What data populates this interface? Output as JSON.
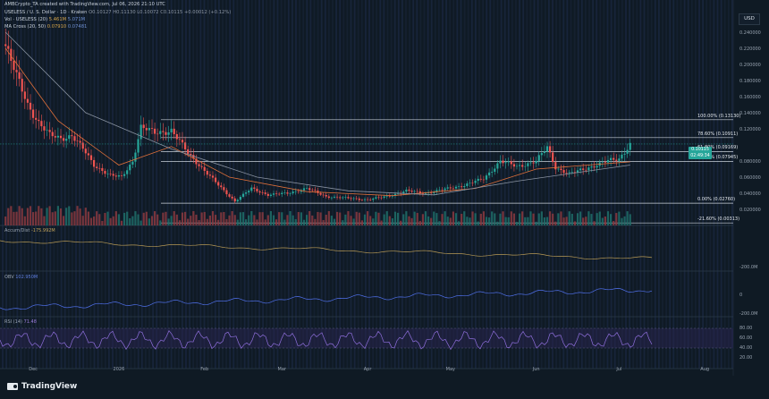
{
  "header": {
    "attribution": "AMBCrypto_TA created with TradingView.com, Jul 06, 2026 21:10 UTC",
    "symbol_line": "USELESS / U. S. Dollar · 1D · Kraken",
    "ohlc": "O0.10127  H0.11130  L0.10072  C0.10115  +0.00012 (+0.12%)",
    "vol_label": "Vol · USELESS (20)",
    "vol_value": "5.461M",
    "vol_value2": "5.071M",
    "ma_label": "MA Cross (20, 50)",
    "ma_value": "0.07910",
    "ma_value2": "0.07481"
  },
  "currency_button": "USD",
  "price_axis": [
    "0.240000",
    "0.220000",
    "0.200000",
    "0.180000",
    "0.160000",
    "0.140000",
    "0.120000",
    "0.080000",
    "0.060000",
    "0.040000",
    "0.020000"
  ],
  "fib_levels": [
    {
      "label": "100.00% (0.13130)",
      "price": 0.1313
    },
    {
      "label": "78.60% (0.10911)",
      "price": 0.10911
    },
    {
      "label": "61.80% (0.09169)",
      "price": 0.09169
    },
    {
      "label": "50.00% (0.07945)",
      "price": 0.07945
    },
    {
      "label": "0.00% (0.02760)",
      "price": 0.0276
    },
    {
      "label": "-21.60% (0.00313)",
      "price": 0.00313
    }
  ],
  "last_price_tag": {
    "price": "0.10115",
    "countdown": "02:49:34"
  },
  "time_axis": [
    "Dec",
    "2026",
    "Feb",
    "Mar",
    "Apr",
    "May",
    "Jun",
    "Jul",
    "Aug"
  ],
  "indicators": {
    "accum_dist": {
      "label": "Accum/Dist",
      "value": "-175.992M",
      "axis": [
        "-200.0M"
      ]
    },
    "obv": {
      "label": "OBV",
      "value": "102.950M",
      "axis": [
        "0",
        "-200.0M"
      ]
    },
    "rsi": {
      "label": "RSI (14)",
      "value": "71.48",
      "axis": [
        "80.00",
        "60.00",
        "40.00",
        "20.00"
      ]
    }
  },
  "brand": "TradingView",
  "chart_data": {
    "type": "candlestick",
    "title": "USELESS / U. S. Dollar · 1D · Kraken",
    "ylim": [
      0,
      0.25
    ],
    "x_range": [
      "2025-11-19",
      "2026-08-10"
    ],
    "price_path": [
      [
        "2025-11-21",
        0.225
      ],
      [
        "2025-11-25",
        0.185
      ],
      [
        "2025-11-29",
        0.15
      ],
      [
        "2025-12-03",
        0.128
      ],
      [
        "2025-12-07",
        0.112
      ],
      [
        "2025-12-11",
        0.108
      ],
      [
        "2025-12-15",
        0.112
      ],
      [
        "2025-12-19",
        0.095
      ],
      [
        "2025-12-23",
        0.075
      ],
      [
        "2025-12-29",
        0.062
      ],
      [
        "2026-01-02",
        0.06
      ],
      [
        "2026-01-06",
        0.08
      ],
      [
        "2026-01-09",
        0.122
      ],
      [
        "2026-01-14",
        0.115
      ],
      [
        "2026-01-20",
        0.118
      ],
      [
        "2026-01-26",
        0.09
      ],
      [
        "2026-02-01",
        0.068
      ],
      [
        "2026-02-06",
        0.05
      ],
      [
        "2026-02-12",
        0.03
      ],
      [
        "2026-02-18",
        0.046
      ],
      [
        "2026-02-24",
        0.038
      ],
      [
        "2026-03-03",
        0.04
      ],
      [
        "2026-03-10",
        0.046
      ],
      [
        "2026-03-17",
        0.036
      ],
      [
        "2026-03-24",
        0.034
      ],
      [
        "2026-04-01",
        0.032
      ],
      [
        "2026-04-08",
        0.036
      ],
      [
        "2026-04-15",
        0.043
      ],
      [
        "2026-04-22",
        0.04
      ],
      [
        "2026-04-29",
        0.045
      ],
      [
        "2026-05-06",
        0.05
      ],
      [
        "2026-05-13",
        0.058
      ],
      [
        "2026-05-19",
        0.08
      ],
      [
        "2026-05-25",
        0.073
      ],
      [
        "2026-06-01",
        0.08
      ],
      [
        "2026-06-05",
        0.097
      ],
      [
        "2026-06-08",
        0.072
      ],
      [
        "2026-06-13",
        0.064
      ],
      [
        "2026-06-20",
        0.072
      ],
      [
        "2026-06-27",
        0.08
      ],
      [
        "2026-07-01",
        0.083
      ],
      [
        "2026-07-05",
        0.101
      ]
    ],
    "ma_fast": [
      [
        "2025-11-21",
        0.22
      ],
      [
        "2025-12-10",
        0.13
      ],
      [
        "2026-01-01",
        0.075
      ],
      [
        "2026-01-20",
        0.098
      ],
      [
        "2026-02-10",
        0.06
      ],
      [
        "2026-03-10",
        0.042
      ],
      [
        "2026-04-10",
        0.037
      ],
      [
        "2026-05-10",
        0.046
      ],
      [
        "2026-06-01",
        0.07
      ],
      [
        "2026-07-05",
        0.079
      ]
    ],
    "ma_slow": [
      [
        "2025-11-21",
        0.24
      ],
      [
        "2025-12-20",
        0.14
      ],
      [
        "2026-01-20",
        0.095
      ],
      [
        "2026-02-20",
        0.06
      ],
      [
        "2026-03-25",
        0.043
      ],
      [
        "2026-04-25",
        0.038
      ],
      [
        "2026-05-25",
        0.055
      ],
      [
        "2026-07-05",
        0.075
      ]
    ]
  }
}
